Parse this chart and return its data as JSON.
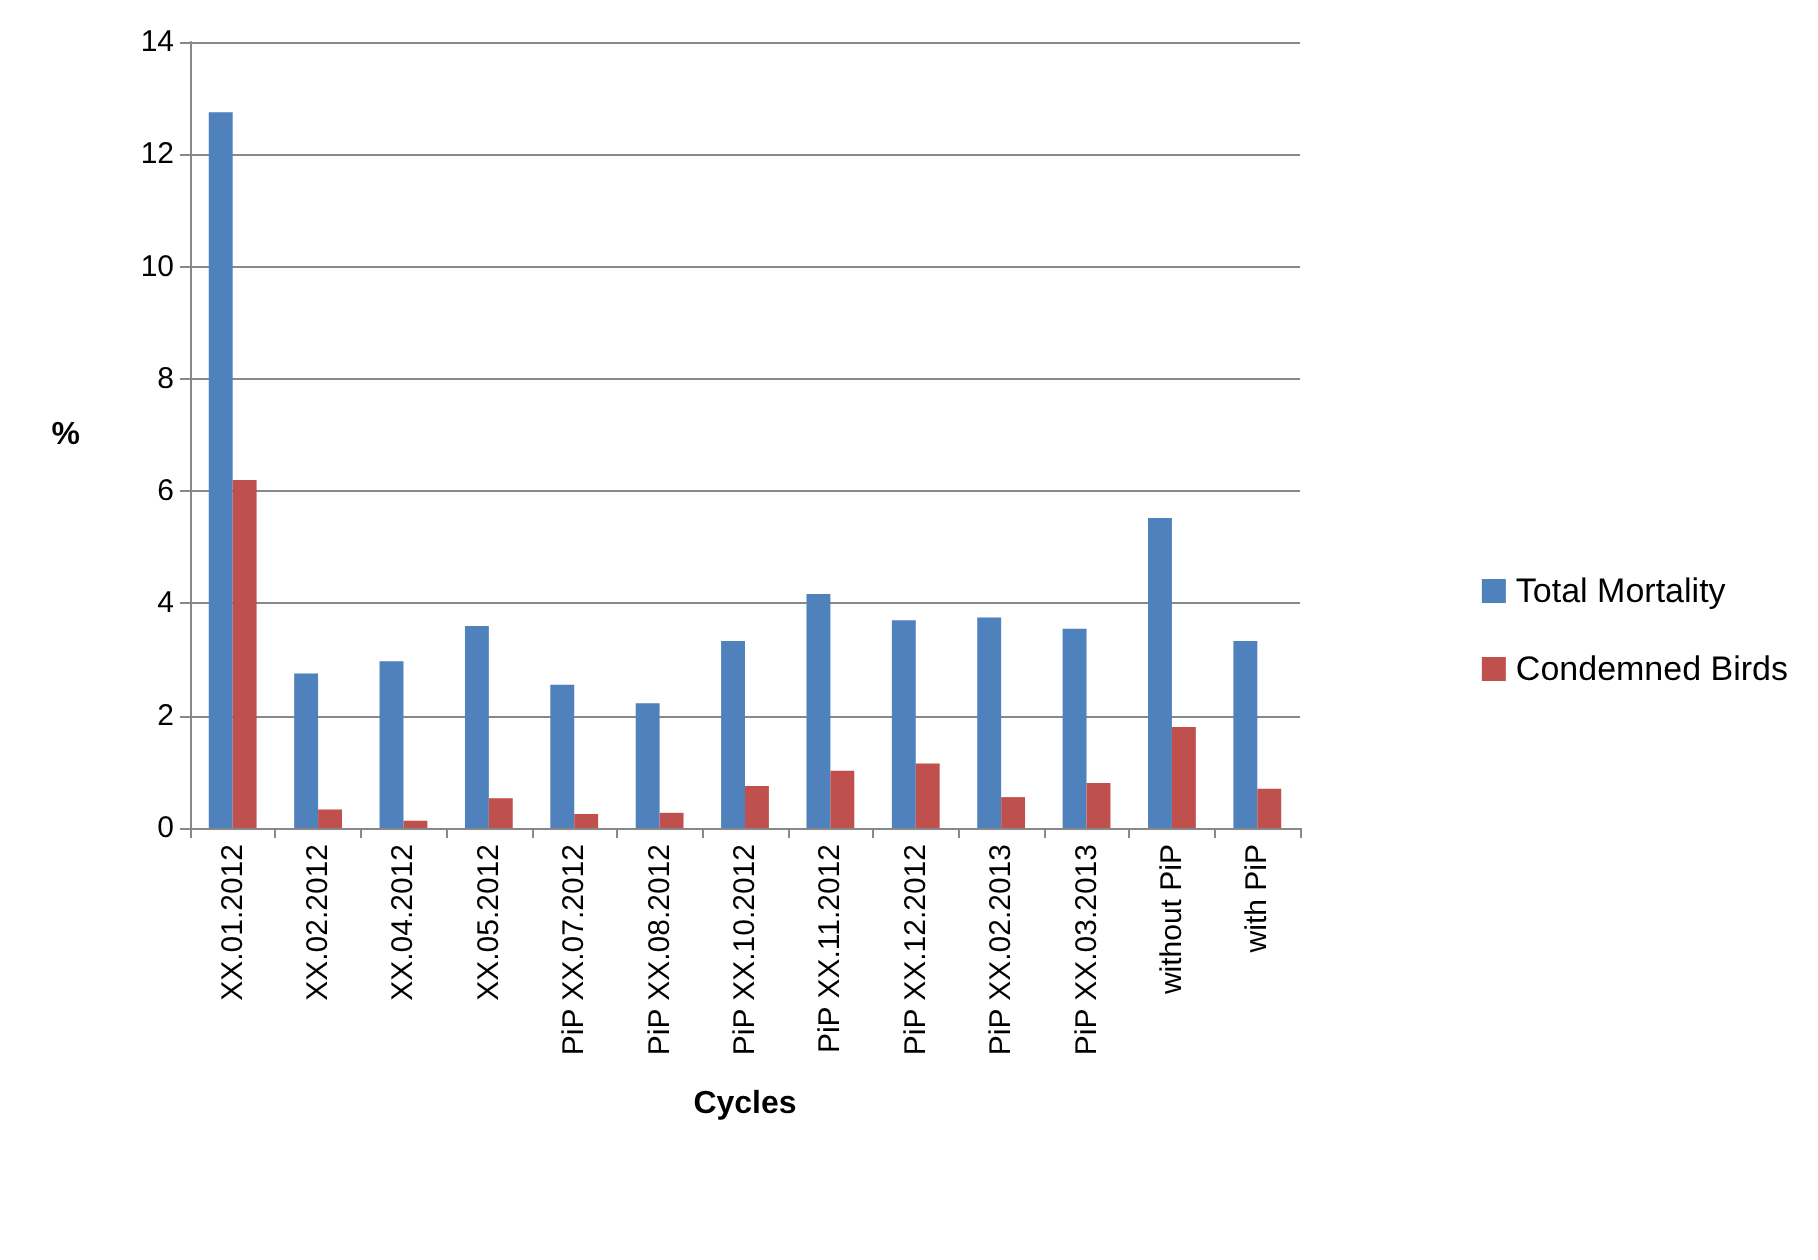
{
  "chart_data": {
    "type": "bar",
    "xlabel": "Cycles",
    "ylabel": "%",
    "categories": [
      "XX.01.2012",
      "XX.02.2012",
      "XX.04.2012",
      "XX.05.2012",
      "PiP XX.07.2012",
      "PiP XX.08.2012",
      "PiP XX.10.2012",
      "PiP XX.11.2012",
      "PiP XX.12.2012",
      "PiP XX.02.2013",
      "PiP XX.03.2013",
      "without PiP",
      "with PiP"
    ],
    "series": [
      {
        "name": "Total Mortality",
        "color": "#4f81bd",
        "values": [
          12.75,
          2.75,
          2.97,
          3.6,
          2.55,
          2.22,
          3.33,
          4.17,
          3.7,
          3.75,
          3.55,
          5.52,
          3.33
        ]
      },
      {
        "name": "Condemned Birds",
        "color": "#c0504d",
        "values": [
          6.2,
          0.33,
          0.13,
          0.53,
          0.25,
          0.27,
          0.75,
          1.02,
          1.15,
          0.55,
          0.8,
          1.8,
          0.7
        ]
      }
    ],
    "ylim": [
      0,
      14
    ],
    "yticks": [
      0,
      2,
      4,
      6,
      8,
      10,
      12,
      14
    ],
    "grid": "y",
    "legend": "right"
  }
}
